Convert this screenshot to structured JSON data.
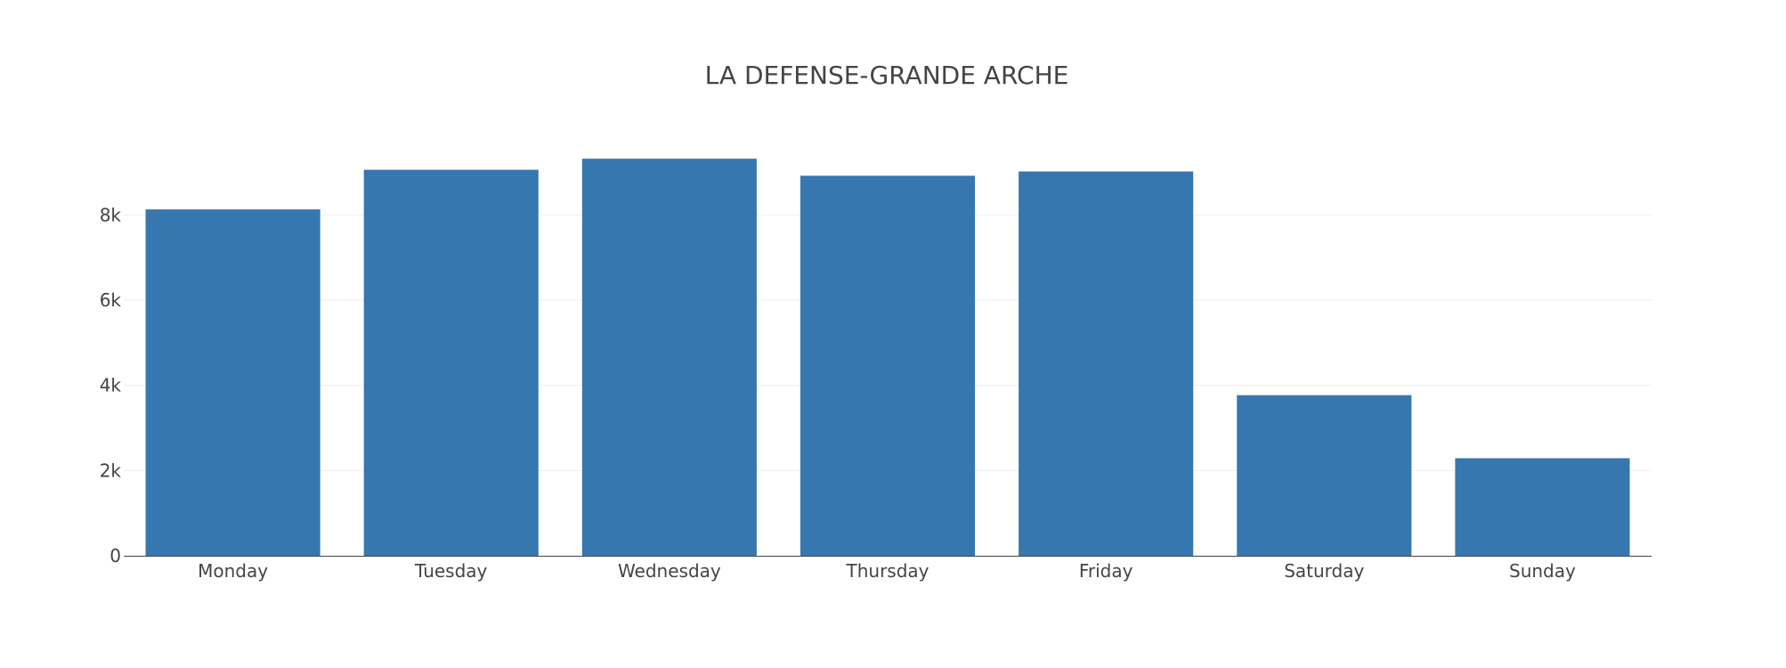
{
  "chart_data": {
    "type": "bar",
    "title": "LA DEFENSE-GRANDE ARCHE",
    "xlabel": "",
    "ylabel": "",
    "categories": [
      "Monday",
      "Tuesday",
      "Wednesday",
      "Thursday",
      "Friday",
      "Saturday",
      "Sunday"
    ],
    "values": [
      8130,
      9060,
      9320,
      8920,
      9020,
      3770,
      2290
    ],
    "ylim": [
      0,
      9700
    ],
    "y_ticks": [
      {
        "value": 0,
        "label": "0"
      },
      {
        "value": 2000,
        "label": "2k"
      },
      {
        "value": 4000,
        "label": "4k"
      },
      {
        "value": 6000,
        "label": "6k"
      },
      {
        "value": 8000,
        "label": "8k"
      }
    ],
    "grid": true,
    "legend": "none",
    "bar_color": "#3777b0"
  }
}
